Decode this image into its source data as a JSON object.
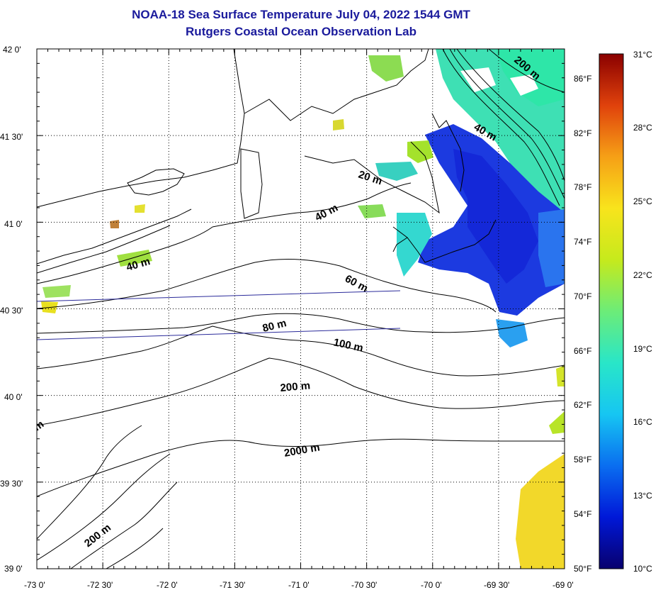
{
  "title": {
    "line1": "NOAA-18 Sea Surface Temperature July 04, 2022 1544 GMT",
    "line2": "Rutgers Coastal Ocean Observation Lab"
  },
  "axes": {
    "lat_labels": [
      "42 0'",
      "41 30'",
      "41 0'",
      "40 30'",
      "40 0'",
      "39 30'",
      "39 0'"
    ],
    "lon_labels": [
      "-73 0'",
      "-72 30'",
      "-72 0'",
      "-71 30'",
      "-71 0'",
      "-70 30'",
      "-70 0'",
      "-69 30'",
      "-69 0'"
    ],
    "lat_range": [
      39.0,
      42.0
    ],
    "lon_range": [
      -73.0,
      -69.0
    ],
    "grid": "dotted"
  },
  "colorbar": {
    "celsius_labels": [
      "31°C",
      "28°C",
      "25°C",
      "22°C",
      "19°C",
      "16°C",
      "13°C",
      "10°C"
    ],
    "fahrenheit_labels": [
      "86°F",
      "82°F",
      "78°F",
      "74°F",
      "70°F",
      "66°F",
      "62°F",
      "58°F",
      "54°F",
      "50°F"
    ],
    "range_c": [
      10,
      31
    ],
    "stops": [
      "#08006e",
      "#0018d8",
      "#0a6ef0",
      "#16c6f2",
      "#29e6c8",
      "#6cec78",
      "#c6ea1c",
      "#f8e41c",
      "#f6a016",
      "#e0420c",
      "#8a0000"
    ]
  },
  "contour_labels": {
    "d200_ne": "200 m",
    "d40_ne": "40 m",
    "d20": "20 m",
    "d40_mid": "40 m",
    "d40_west": "40 m",
    "d60": "60 m",
    "d80": "80 m",
    "d100": "100 m",
    "d200": "200 m",
    "d2000": "2000 m",
    "d200_sw": "200 m",
    "edge_m": "m"
  },
  "colors": {
    "title": "#1a1a9c",
    "transect": "#2a2a9a",
    "warm_patch": "#f2d82a",
    "cold_core": "#1428d8"
  }
}
